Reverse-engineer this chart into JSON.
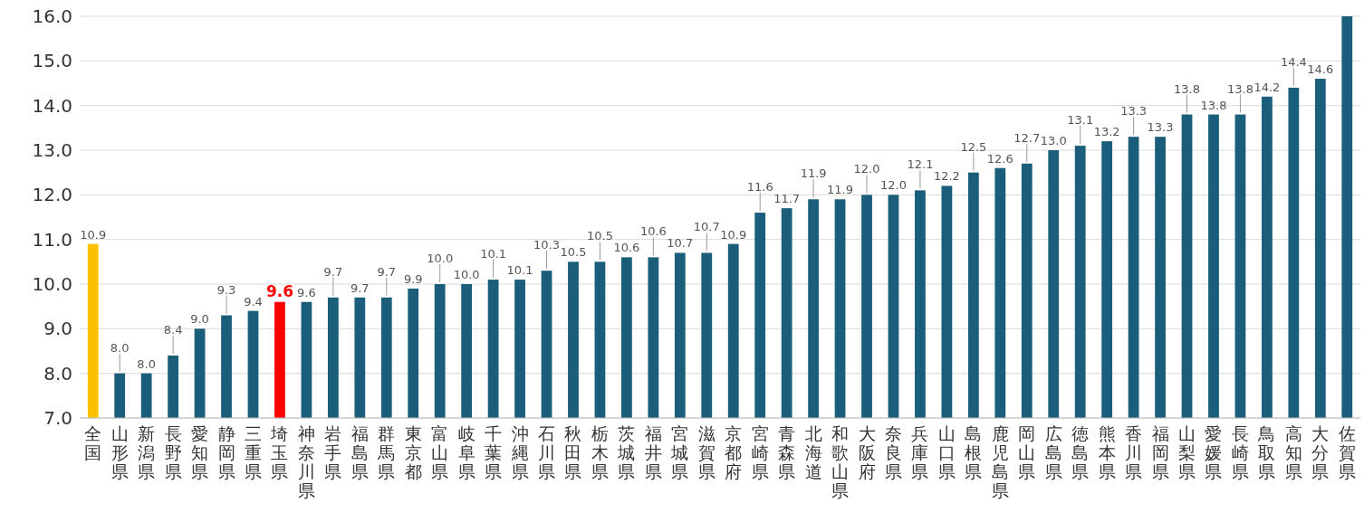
{
  "chart_data": {
    "type": "bar",
    "categories": [
      "全国",
      "山形県",
      "新潟県",
      "長野県",
      "愛知県",
      "静岡県",
      "三重県",
      "埼玉県",
      "神奈川県",
      "岩手県",
      "福島県",
      "群馬県",
      "東京都",
      "富山県",
      "岐阜県",
      "千葉県",
      "沖縄県",
      "石川県",
      "秋田県",
      "栃木県",
      "茨城県",
      "福井県",
      "宮城県",
      "滋賀県",
      "京都府",
      "宮崎県",
      "青森県",
      "北海道",
      "和歌山県",
      "大阪府",
      "奈良県",
      "兵庫県",
      "山口県",
      "島根県",
      "鹿児島県",
      "岡山県",
      "広島県",
      "徳島県",
      "熊本県",
      "香川県",
      "福岡県",
      "山梨県",
      "愛媛県",
      "長崎県",
      "鳥取県",
      "高知県",
      "大分県",
      "佐賀県"
    ],
    "values": [
      10.9,
      8.0,
      8.0,
      8.4,
      9.0,
      9.3,
      9.4,
      9.6,
      9.6,
      9.7,
      9.7,
      9.7,
      9.9,
      10.0,
      10.0,
      10.1,
      10.1,
      10.3,
      10.5,
      10.5,
      10.6,
      10.6,
      10.7,
      10.7,
      10.9,
      11.6,
      11.7,
      11.9,
      11.9,
      12.0,
      12.0,
      12.1,
      12.2,
      12.5,
      12.6,
      12.7,
      13.0,
      13.1,
      13.2,
      13.3,
      13.3,
      13.8,
      13.8,
      13.8,
      14.2,
      14.4,
      14.6,
      16.0
    ],
    "value_labels": [
      "10.9",
      "8.0",
      "8.0",
      "8.4",
      "9.0",
      "9.3",
      "9.4",
      "9.6",
      "9.6",
      "9.7",
      "9.7",
      "9.7",
      "9.9",
      "10.0",
      "10.0",
      "10.1",
      "10.1",
      "10.3",
      "10.5",
      "10.5",
      "10.6",
      "10.6",
      "10.7",
      "10.7",
      "10.9",
      "11.6",
      "11.7",
      "11.9",
      "11.9",
      "12.0",
      "12.0",
      "12.1",
      "12.2",
      "12.5",
      "12.6",
      "12.7",
      "13.0",
      "13.1",
      "13.2",
      "13.3",
      "13.3",
      "13.8",
      "13.8",
      "13.8",
      "14.2",
      "14.4",
      "14.6",
      null
    ],
    "colors": [
      "#ffc000",
      "#1b5e7b",
      "#1b5e7b",
      "#1b5e7b",
      "#1b5e7b",
      "#1b5e7b",
      "#1b5e7b",
      "#ff0000",
      "#1b5e7b",
      "#1b5e7b",
      "#1b5e7b",
      "#1b5e7b",
      "#1b5e7b",
      "#1b5e7b",
      "#1b5e7b",
      "#1b5e7b",
      "#1b5e7b",
      "#1b5e7b",
      "#1b5e7b",
      "#1b5e7b",
      "#1b5e7b",
      "#1b5e7b",
      "#1b5e7b",
      "#1b5e7b",
      "#1b5e7b",
      "#1b5e7b",
      "#1b5e7b",
      "#1b5e7b",
      "#1b5e7b",
      "#1b5e7b",
      "#1b5e7b",
      "#1b5e7b",
      "#1b5e7b",
      "#1b5e7b",
      "#1b5e7b",
      "#1b5e7b",
      "#1b5e7b",
      "#1b5e7b",
      "#1b5e7b",
      "#1b5e7b",
      "#1b5e7b",
      "#1b5e7b",
      "#1b5e7b",
      "#1b5e7b",
      "#1b5e7b",
      "#1b5e7b",
      "#1b5e7b",
      "#1b5e7b"
    ],
    "ylim": [
      7.0,
      16.0
    ],
    "yticks": [
      {
        "value": 7,
        "label": "7.0"
      },
      {
        "value": 8,
        "label": "8.0"
      },
      {
        "value": 9,
        "label": "9.0"
      },
      {
        "value": 10,
        "label": "10.0"
      },
      {
        "value": 11,
        "label": "11.0"
      },
      {
        "value": 12,
        "label": "12.0"
      },
      {
        "value": 13,
        "label": "13.0"
      },
      {
        "value": 14,
        "label": "14.0"
      },
      {
        "value": 15,
        "label": "15.0"
      },
      {
        "value": 16,
        "label": "16.0"
      }
    ],
    "grid": "y"
  }
}
